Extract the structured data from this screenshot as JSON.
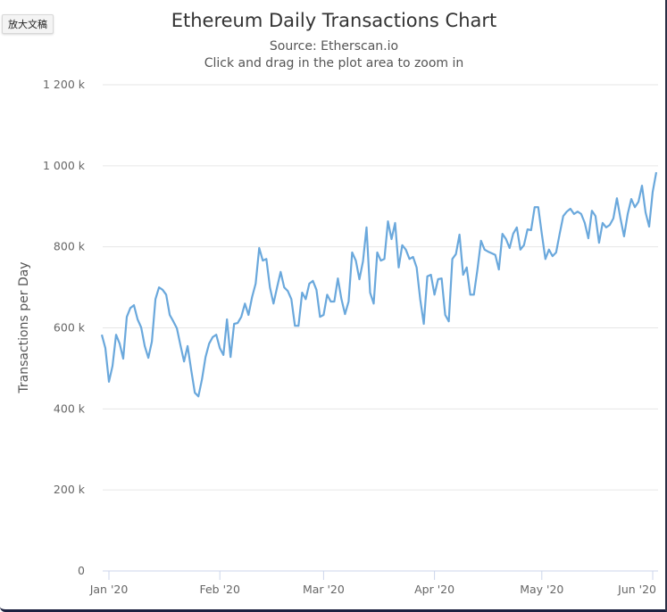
{
  "toolbar": {
    "zoom_button_label": "放大文稿"
  },
  "chart_data": {
    "type": "line",
    "title": "Ethereum Daily Transactions Chart",
    "subtitle": "Source: Etherscan.io",
    "subtitle2": "Click and drag in the plot area to zoom in",
    "xlabel": "",
    "ylabel": "Transactions per Day",
    "ylim": [
      0,
      1200000
    ],
    "xlim": [
      "2019-12-30",
      "2020-06-03"
    ],
    "grid": true,
    "legend": "none",
    "line_color": "#6aa8dc",
    "y_ticks": [
      {
        "value": 0,
        "label": "0"
      },
      {
        "value": 200000,
        "label": "200 k"
      },
      {
        "value": 400000,
        "label": "400 k"
      },
      {
        "value": 600000,
        "label": "600 k"
      },
      {
        "value": 800000,
        "label": "800 k"
      },
      {
        "value": 1000000,
        "label": "1 000 k"
      },
      {
        "value": 1200000,
        "label": "1 200 k"
      }
    ],
    "x_ticks": [
      {
        "date": "2020-01-01",
        "label": "Jan '20"
      },
      {
        "date": "2020-02-01",
        "label": "Feb '20"
      },
      {
        "date": "2020-03-01",
        "label": "Mar '20"
      },
      {
        "date": "2020-04-01",
        "label": "Apr '20"
      },
      {
        "date": "2020-05-01",
        "label": "May '20"
      },
      {
        "date": "2020-06-01",
        "label": "Jun '20"
      }
    ],
    "unit": "thousand transactions",
    "daily_values_by_month": [
      {
        "month": "2019-12",
        "first_day": 30,
        "values": [
          583,
          550
        ]
      },
      {
        "month": "2020-01",
        "first_day": 1,
        "values": [
          467,
          506,
          583,
          561,
          524,
          627,
          649,
          656,
          621,
          601,
          555,
          526,
          566,
          671,
          700,
          694,
          682,
          632,
          616,
          599,
          557,
          517,
          555,
          495,
          440,
          431,
          473,
          528,
          561,
          577,
          583
        ]
      },
      {
        "month": "2020-02",
        "first_day": 1,
        "values": [
          550,
          533,
          621,
          528,
          610,
          612,
          627,
          660,
          632,
          676,
          709,
          797,
          766,
          770,
          700,
          660,
          700,
          738,
          700,
          691,
          671,
          605,
          605,
          687,
          671,
          709,
          716,
          694,
          627
        ]
      },
      {
        "month": "2020-03",
        "first_day": 1,
        "values": [
          632,
          682,
          665,
          665,
          722,
          671,
          634,
          665,
          786,
          766,
          720,
          764,
          848,
          687,
          660,
          786,
          766,
          770,
          863,
          819,
          859,
          749,
          804,
          793,
          770,
          775,
          749,
          671,
          610,
          727,
          731
        ]
      },
      {
        "month": "2020-04",
        "first_day": 1,
        "values": [
          682,
          720,
          722,
          632,
          616,
          770,
          782,
          830,
          731,
          749,
          682,
          682,
          744,
          815,
          793,
          788,
          784,
          780,
          744,
          832,
          819,
          797,
          832,
          848,
          793,
          804,
          843,
          841,
          898,
          898
        ]
      },
      {
        "month": "2020-05",
        "first_day": 1,
        "values": [
          832,
          770,
          793,
          777,
          786,
          832,
          876,
          887,
          894,
          881,
          887,
          881,
          859,
          821,
          889,
          876,
          810,
          859,
          848,
          854,
          870,
          920,
          870,
          826,
          881,
          918,
          898,
          911,
          951,
          885,
          850
        ]
      },
      {
        "month": "2020-06",
        "first_day": 1,
        "values": [
          936,
          984
        ]
      }
    ]
  }
}
